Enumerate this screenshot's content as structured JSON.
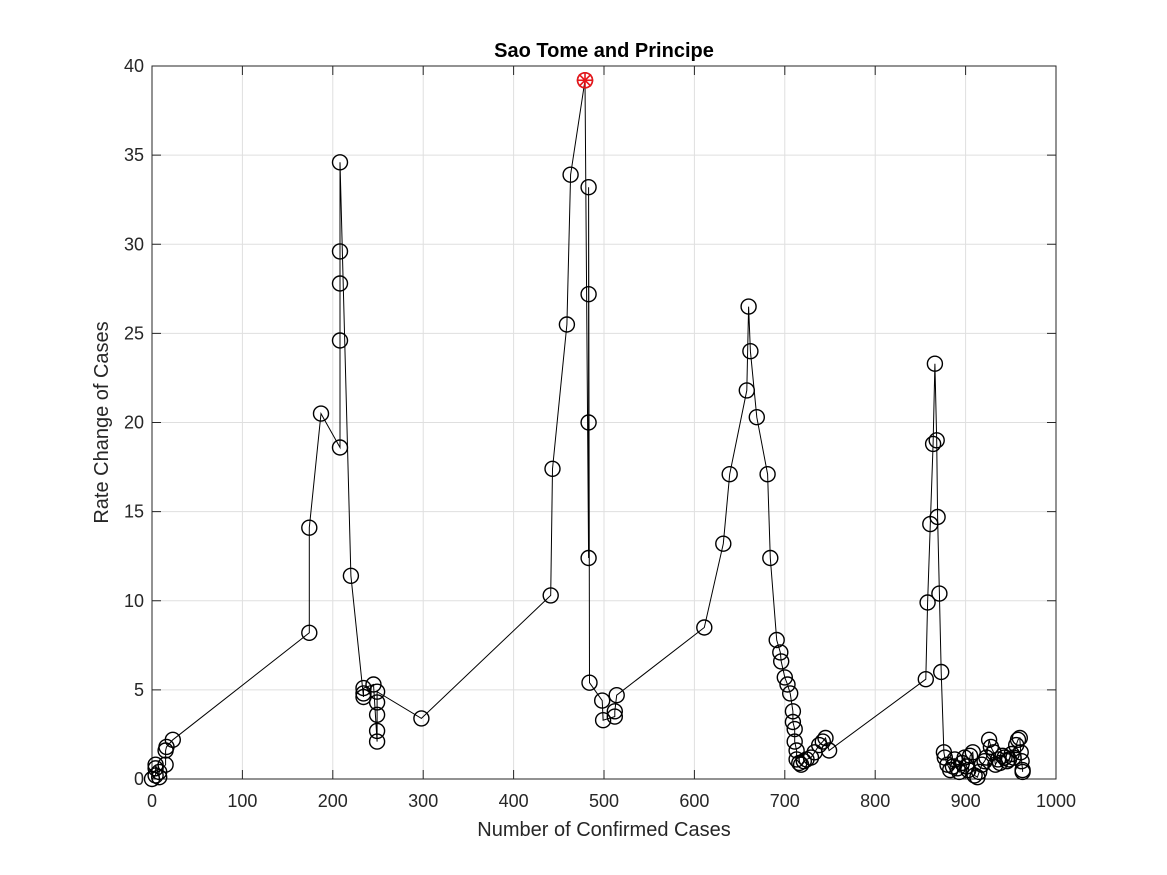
{
  "chart_data": {
    "type": "scatter",
    "title": "Sao Tome and Principe",
    "xlabel": "Number of Confirmed Cases",
    "ylabel": "Rate Change of Cases",
    "xlim": [
      0,
      1000
    ],
    "ylim": [
      0,
      40
    ],
    "xticks": [
      0,
      100,
      200,
      300,
      400,
      500,
      600,
      700,
      800,
      900,
      1000
    ],
    "yticks": [
      0,
      5,
      10,
      15,
      20,
      25,
      30,
      35,
      40
    ],
    "xtick_labels": [
      "0",
      "100",
      "200",
      "300",
      "400",
      "500",
      "600",
      "700",
      "800",
      "900",
      "1000"
    ],
    "ytick_labels": [
      "0",
      "5",
      "10",
      "15",
      "20",
      "25",
      "30",
      "35",
      "40"
    ],
    "grid": true,
    "series": [
      {
        "marker": "circle",
        "line": true,
        "color": "#000000",
        "x": [
          0,
          4,
          4,
          4,
          8,
          8,
          15,
          15,
          16,
          23,
          174,
          174,
          187,
          208,
          208,
          208,
          208,
          208,
          220,
          234,
          234,
          234,
          245,
          249,
          249,
          249,
          249,
          249,
          298,
          441,
          443,
          459,
          463,
          479,
          483,
          483,
          483,
          483,
          484,
          498,
          499,
          512,
          512,
          514,
          611,
          632,
          639,
          658,
          660,
          662,
          669,
          681,
          684,
          691,
          695,
          696,
          700,
          703,
          706,
          709,
          709,
          711,
          711,
          713,
          713,
          716,
          718,
          721,
          724,
          729,
          733,
          738,
          742,
          745,
          749,
          856,
          858,
          861,
          864,
          866,
          868,
          869,
          871,
          873,
          876,
          877,
          880,
          883,
          886,
          888,
          891,
          893,
          896,
          899,
          901,
          903,
          905,
          908,
          910,
          913,
          915,
          918,
          921,
          923,
          926,
          928,
          931,
          933,
          936,
          938,
          941,
          943,
          946,
          948,
          951,
          953,
          956,
          958,
          960,
          961,
          962,
          963,
          963
        ],
        "y": [
          0,
          0.2,
          0.6,
          0.8,
          0.1,
          0.4,
          0.8,
          1.6,
          1.8,
          2.2,
          8.2,
          14.1,
          20.5,
          18.6,
          24.6,
          27.8,
          29.6,
          34.6,
          11.4,
          4.6,
          4.8,
          5.1,
          5.3,
          2.1,
          2.7,
          3.6,
          4.3,
          4.9,
          3.4,
          10.3,
          17.4,
          25.5,
          33.9,
          39.2,
          12.4,
          20.0,
          27.2,
          33.2,
          5.4,
          4.4,
          3.3,
          3.5,
          3.8,
          4.7,
          8.5,
          13.2,
          17.1,
          21.8,
          26.5,
          24.0,
          20.3,
          17.1,
          12.4,
          7.8,
          7.1,
          6.6,
          5.7,
          5.3,
          4.8,
          3.8,
          3.2,
          2.8,
          2.1,
          1.6,
          1.1,
          0.9,
          0.8,
          1.0,
          1.1,
          1.2,
          1.5,
          1.9,
          2.1,
          2.3,
          1.6,
          5.6,
          9.9,
          14.3,
          18.8,
          23.3,
          19.0,
          14.7,
          10.4,
          6.0,
          1.5,
          1.2,
          0.8,
          0.5,
          0.7,
          1.1,
          0.6,
          0.4,
          0.9,
          1.2,
          0.7,
          0.5,
          1.3,
          1.5,
          0.2,
          0.1,
          0.4,
          0.8,
          1.0,
          1.2,
          2.2,
          1.8,
          1.5,
          0.8,
          1.1,
          0.9,
          1.3,
          1.2,
          1.0,
          1.1,
          1.4,
          1.2,
          1.9,
          2.2,
          2.3,
          1.5,
          1.0,
          0.5,
          0.4
        ]
      }
    ],
    "highlight": {
      "x": 479,
      "y": 39.2,
      "marker": "asterisk-circle",
      "color": "#e8161b"
    }
  }
}
